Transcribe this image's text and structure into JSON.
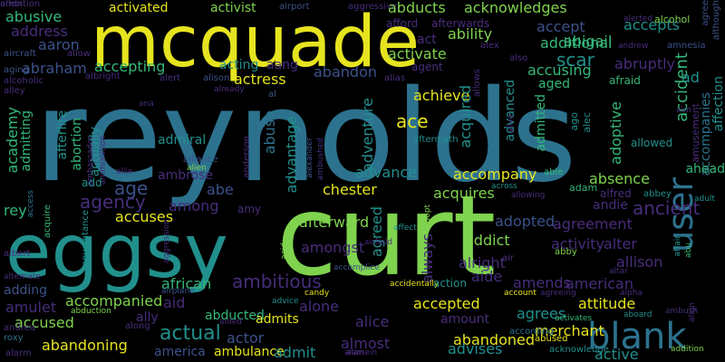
{
  "palette": {
    "yellow": "#e6e41f",
    "lime": "#7fd34e",
    "green": "#35b779",
    "teal": "#21908d",
    "steel": "#2c728e",
    "blue": "#3b528b",
    "indigo": "#472d7b",
    "purple": "#440154",
    "background": "#000000"
  },
  "words": [
    {
      "text": "reynolds",
      "color": "steel"
    },
    {
      "text": "curt",
      "color": "lime"
    },
    {
      "text": "mcquade",
      "color": "yellow"
    },
    {
      "text": "eggsy",
      "color": "teal"
    },
    {
      "text": "blank",
      "color": "steel"
    },
    {
      "text": "user",
      "color": "steel"
    },
    {
      "text": "abusive",
      "color": "green"
    },
    {
      "text": "address",
      "color": "indigo"
    },
    {
      "text": "aaron",
      "color": "blue"
    },
    {
      "text": "abraham",
      "color": "blue"
    },
    {
      "text": "accepting",
      "color": "green"
    },
    {
      "text": "activated",
      "color": "yellow"
    },
    {
      "text": "activist",
      "color": "lime"
    },
    {
      "text": "airport",
      "color": "blue"
    },
    {
      "text": "aggressive",
      "color": "indigo"
    },
    {
      "text": "abducts",
      "color": "lime"
    },
    {
      "text": "acknowledges",
      "color": "lime"
    },
    {
      "text": "afford",
      "color": "indigo"
    },
    {
      "text": "afterwards",
      "color": "indigo"
    },
    {
      "text": "accepts",
      "color": "teal"
    },
    {
      "text": "alerted",
      "color": "indigo"
    },
    {
      "text": "alcohol",
      "color": "lime"
    },
    {
      "text": "agree",
      "color": "blue"
    },
    {
      "text": "although",
      "color": "blue"
    },
    {
      "text": "accept",
      "color": "blue"
    },
    {
      "text": "act",
      "color": "indigo"
    },
    {
      "text": "ability",
      "color": "lime"
    },
    {
      "text": "abigail",
      "color": "green"
    },
    {
      "text": "alex",
      "color": "indigo"
    },
    {
      "text": "additional",
      "color": "green"
    },
    {
      "text": "andrew",
      "color": "indigo"
    },
    {
      "text": "amnesia",
      "color": "blue"
    },
    {
      "text": "aircraft",
      "color": "blue"
    },
    {
      "text": "allow",
      "color": "indigo"
    },
    {
      "text": "activate",
      "color": "lime"
    },
    {
      "text": "also",
      "color": "indigo"
    },
    {
      "text": "abruptly",
      "color": "indigo"
    },
    {
      "text": "accident",
      "color": "green"
    },
    {
      "text": "aging",
      "color": "blue"
    },
    {
      "text": "acting",
      "color": "teal"
    },
    {
      "text": "aang",
      "color": "indigo"
    },
    {
      "text": "abandon",
      "color": "blue"
    },
    {
      "text": "agent",
      "color": "indigo"
    },
    {
      "text": "scar",
      "color": "teal"
    },
    {
      "text": "accusing",
      "color": "green"
    },
    {
      "text": "alcoholic",
      "color": "indigo"
    },
    {
      "text": "albright",
      "color": "indigo"
    },
    {
      "text": "alert",
      "color": "indigo"
    },
    {
      "text": "alison",
      "color": "blue"
    },
    {
      "text": "actress",
      "color": "yellow"
    },
    {
      "text": "alias",
      "color": "indigo"
    },
    {
      "text": "allows",
      "color": "indigo"
    },
    {
      "text": "afraid",
      "color": "green"
    },
    {
      "text": "ad",
      "color": "teal"
    },
    {
      "text": "aged",
      "color": "green"
    },
    {
      "text": "alley",
      "color": "indigo"
    },
    {
      "text": "already",
      "color": "indigo"
    },
    {
      "text": "al",
      "color": "blue"
    },
    {
      "text": "ana",
      "color": "indigo"
    },
    {
      "text": "achieve",
      "color": "yellow"
    },
    {
      "text": "acquired",
      "color": "teal"
    },
    {
      "text": "advanced",
      "color": "teal"
    },
    {
      "text": "admitted",
      "color": "green"
    },
    {
      "text": "ago",
      "color": "teal"
    },
    {
      "text": "alec",
      "color": "teal"
    },
    {
      "text": "adoptive",
      "color": "green"
    },
    {
      "text": "academy",
      "color": "green"
    },
    {
      "text": "admitting",
      "color": "green"
    },
    {
      "text": "afterlife",
      "color": "teal"
    },
    {
      "text": "ace",
      "color": "yellow"
    },
    {
      "text": "abortion",
      "color": "green"
    },
    {
      "text": "actually",
      "color": "teal"
    },
    {
      "text": "admiral",
      "color": "teal"
    },
    {
      "text": "abuse",
      "color": "steel"
    },
    {
      "text": "advantage",
      "color": "teal"
    },
    {
      "text": "adventure",
      "color": "teal"
    },
    {
      "text": "aim",
      "color": "indigo"
    },
    {
      "text": "allowed",
      "color": "teal"
    },
    {
      "text": "amusement",
      "color": "indigo"
    },
    {
      "text": "accompanies",
      "color": "steel"
    },
    {
      "text": "affection",
      "color": "teal"
    },
    {
      "text": "aftermath",
      "color": "teal"
    },
    {
      "text": "alive",
      "color": "indigo"
    },
    {
      "text": "ambassador",
      "color": "indigo"
    },
    {
      "text": "ammunition",
      "color": "indigo"
    },
    {
      "text": "anderson",
      "color": "indigo"
    },
    {
      "text": "alexander",
      "color": "blue"
    },
    {
      "text": "ambushed",
      "color": "indigo"
    },
    {
      "text": "alliance",
      "color": "blue"
    },
    {
      "text": "alien",
      "color": "lime"
    },
    {
      "text": "ambrose",
      "color": "indigo"
    },
    {
      "text": "advance",
      "color": "teal"
    },
    {
      "text": "accompany",
      "color": "yellow"
    },
    {
      "text": "absence",
      "color": "lime"
    },
    {
      "text": "able",
      "color": "green"
    },
    {
      "text": "ahead",
      "color": "green"
    },
    {
      "text": "add",
      "color": "teal"
    },
    {
      "text": "age",
      "color": "blue"
    },
    {
      "text": "chester",
      "color": "yellow"
    },
    {
      "text": "abe",
      "color": "blue"
    },
    {
      "text": "acquires",
      "color": "lime"
    },
    {
      "text": "across",
      "color": "teal"
    },
    {
      "text": "alfred",
      "color": "indigo"
    },
    {
      "text": "adam",
      "color": "green"
    },
    {
      "text": "abbey",
      "color": "teal"
    },
    {
      "text": "agency",
      "color": "indigo"
    },
    {
      "text": "allie",
      "color": "indigo"
    },
    {
      "text": "access",
      "color": "steel"
    },
    {
      "text": "allowing",
      "color": "indigo"
    },
    {
      "text": "andie",
      "color": "indigo"
    },
    {
      "text": "ancient",
      "color": "indigo"
    },
    {
      "text": "adult",
      "color": "teal"
    },
    {
      "text": "rey",
      "color": "green"
    },
    {
      "text": "among",
      "color": "indigo"
    },
    {
      "text": "acquire",
      "color": "green"
    },
    {
      "text": "accuses",
      "color": "yellow"
    },
    {
      "text": "amy",
      "color": "indigo"
    },
    {
      "text": "afterward",
      "color": "lime"
    },
    {
      "text": "agreed",
      "color": "teal"
    },
    {
      "text": "adopt",
      "color": "lime"
    },
    {
      "text": "adopted",
      "color": "blue"
    },
    {
      "text": "agreement",
      "color": "indigo"
    },
    {
      "text": "affect",
      "color": "teal"
    },
    {
      "text": "acquaintance",
      "color": "teal"
    },
    {
      "text": "aggression",
      "color": "indigo"
    },
    {
      "text": "amongst",
      "color": "indigo"
    },
    {
      "text": "airfield",
      "color": "indigo"
    },
    {
      "text": "addict",
      "color": "lime"
    },
    {
      "text": "alter",
      "color": "indigo"
    },
    {
      "text": "activity",
      "color": "indigo"
    },
    {
      "text": "abby",
      "color": "lime"
    },
    {
      "text": "affair",
      "color": "teal"
    },
    {
      "text": "allison",
      "color": "indigo"
    },
    {
      "text": "albert",
      "color": "indigo"
    },
    {
      "text": "abu",
      "color": "green"
    },
    {
      "text": "always",
      "color": "indigo"
    },
    {
      "text": "alright",
      "color": "indigo"
    },
    {
      "text": "accomplice",
      "color": "blue"
    },
    {
      "text": "acid",
      "color": "lime"
    },
    {
      "text": "air",
      "color": "indigo"
    },
    {
      "text": "altar",
      "color": "indigo"
    },
    {
      "text": "aide",
      "color": "indigo"
    },
    {
      "text": "alternate",
      "color": "indigo"
    },
    {
      "text": "african",
      "color": "green"
    },
    {
      "text": "ambitious",
      "color": "indigo"
    },
    {
      "text": "adding",
      "color": "blue"
    },
    {
      "text": "accidentally",
      "color": "yellow"
    },
    {
      "text": "action",
      "color": "teal"
    },
    {
      "text": "amends",
      "color": "indigo"
    },
    {
      "text": "airplane",
      "color": "blue"
    },
    {
      "text": "candy",
      "color": "yellow"
    },
    {
      "text": "american",
      "color": "indigo"
    },
    {
      "text": "amulet",
      "color": "indigo"
    },
    {
      "text": "accompanied",
      "color": "lime"
    },
    {
      "text": "advice",
      "color": "teal"
    },
    {
      "text": "account",
      "color": "yellow"
    },
    {
      "text": "agreeing",
      "color": "indigo"
    },
    {
      "text": "alpha",
      "color": "indigo"
    },
    {
      "text": "aid",
      "color": "indigo"
    },
    {
      "text": "alone",
      "color": "indigo"
    },
    {
      "text": "accepted",
      "color": "yellow"
    },
    {
      "text": "attitude",
      "color": "yellow"
    },
    {
      "text": "abduction",
      "color": "lime"
    },
    {
      "text": "accused",
      "color": "lime"
    },
    {
      "text": "ally",
      "color": "indigo"
    },
    {
      "text": "abducted",
      "color": "green"
    },
    {
      "text": "admits",
      "color": "yellow"
    },
    {
      "text": "agrees",
      "color": "teal"
    },
    {
      "text": "activates",
      "color": "green"
    },
    {
      "text": "aboard",
      "color": "teal"
    },
    {
      "text": "ambush",
      "color": "indigo"
    },
    {
      "text": "align",
      "color": "indigo"
    },
    {
      "text": "andrea",
      "color": "indigo"
    },
    {
      "text": "along",
      "color": "indigo"
    },
    {
      "text": "aided",
      "color": "indigo"
    },
    {
      "text": "alice",
      "color": "indigo"
    },
    {
      "text": "amount",
      "color": "indigo"
    },
    {
      "text": "merchant",
      "color": "yellow"
    },
    {
      "text": "actual",
      "color": "teal"
    },
    {
      "text": "actor",
      "color": "blue"
    },
    {
      "text": "roxy",
      "color": "steel"
    },
    {
      "text": "abandoning",
      "color": "yellow"
    },
    {
      "text": "almost",
      "color": "indigo"
    },
    {
      "text": "abandoned",
      "color": "yellow"
    },
    {
      "text": "according",
      "color": "steel"
    },
    {
      "text": "abused",
      "color": "yellow"
    },
    {
      "text": "alan",
      "color": "indigo"
    },
    {
      "text": "america",
      "color": "blue"
    },
    {
      "text": "ambulance",
      "color": "yellow"
    },
    {
      "text": "admit",
      "color": "teal"
    },
    {
      "text": "advises",
      "color": "teal"
    },
    {
      "text": "active",
      "color": "teal"
    },
    {
      "text": "acknowledge",
      "color": "teal"
    },
    {
      "text": "addition",
      "color": "lime"
    },
    {
      "text": "alarm",
      "color": "indigo"
    },
    {
      "text": "alamein",
      "color": "indigo"
    },
    {
      "text": "allen",
      "color": "indigo"
    },
    {
      "text": "ambition",
      "color": "indigo"
    }
  ]
}
